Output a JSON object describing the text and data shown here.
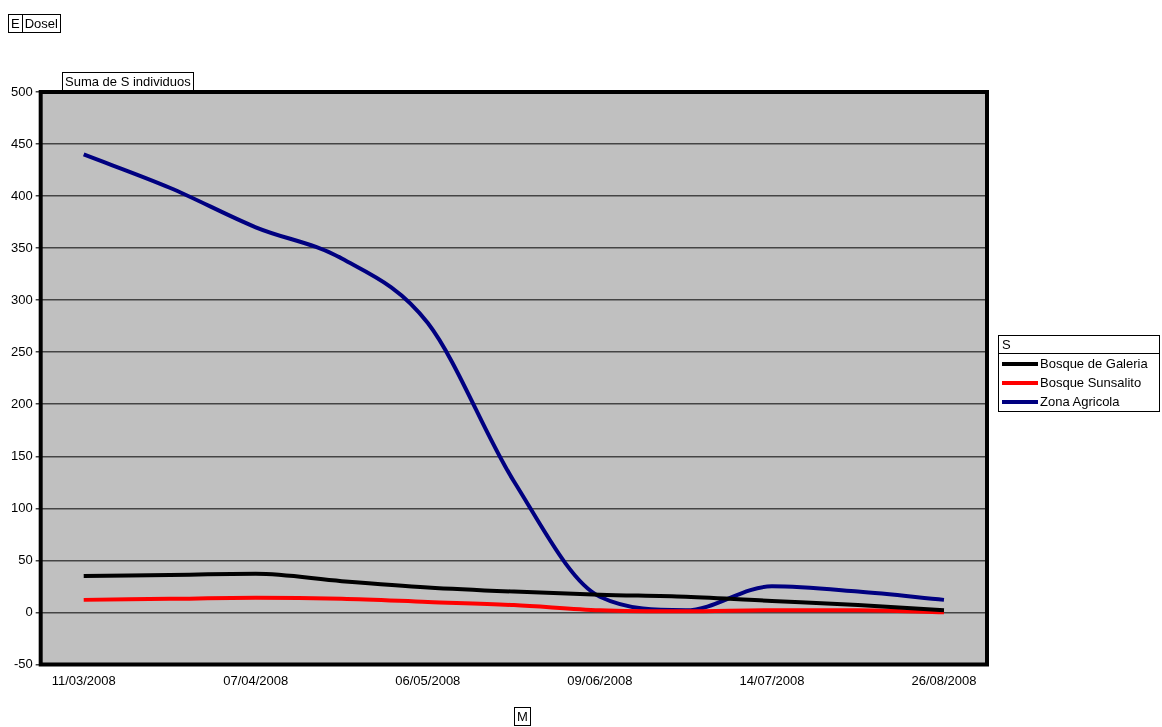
{
  "chart_data": {
    "type": "line",
    "annotations": [
      "E",
      "Dosel"
    ],
    "ylabel": "Suma de S individuos",
    "xlabel": "M",
    "legend_title": "S",
    "categories": [
      "11/03/2008",
      null,
      "07/04/2008",
      null,
      "06/05/2008",
      null,
      "09/06/2008",
      null,
      "14/07/2008",
      null,
      "26/08/2008"
    ],
    "series": [
      {
        "name": "Bosque de Galeria",
        "color": "#000000",
        "values": [
          35,
          36,
          37,
          30,
          24,
          20,
          17,
          15,
          11,
          7,
          2
        ]
      },
      {
        "name": "Bosque Sunsalito",
        "color": "#ff0000",
        "values": [
          12,
          13,
          14,
          13,
          10,
          7,
          2,
          1,
          2,
          2,
          0
        ]
      },
      {
        "name": "Zona Agricola",
        "color": "#000080",
        "values": [
          440,
          408,
          370,
          340,
          278,
          126,
          15,
          2,
          25,
          20,
          12
        ]
      }
    ],
    "ylim": [
      -50,
      500
    ],
    "yticks": [
      -50,
      0,
      50,
      100,
      150,
      200,
      250,
      300,
      350,
      400,
      450,
      500
    ],
    "grid": "y",
    "legend": "right",
    "marker": "none",
    "line_style": "solid"
  }
}
